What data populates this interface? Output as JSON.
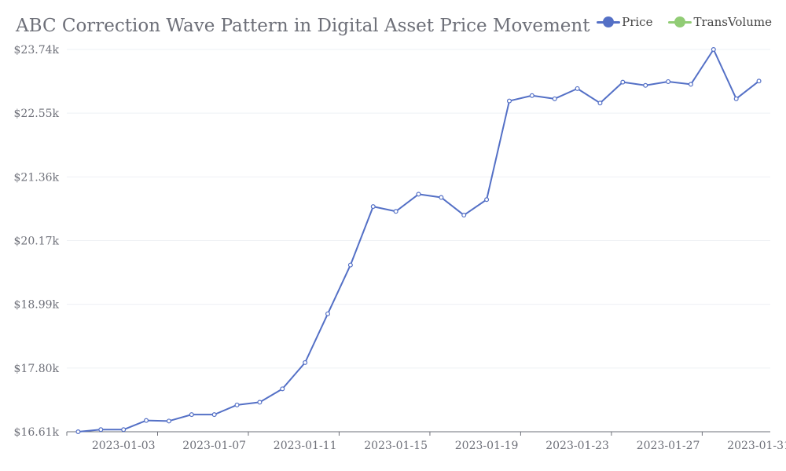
{
  "chart_data": {
    "type": "line",
    "title": "ABC Correction Wave Pattern in Digital Asset Price Movement",
    "legend": {
      "position": "top-right",
      "entries": [
        {
          "name": "Price",
          "color": "#5470c6"
        },
        {
          "name": "TransVolume",
          "color": "#91cc75"
        }
      ]
    },
    "x": [
      "2023-01-01",
      "2023-01-02",
      "2023-01-03",
      "2023-01-04",
      "2023-01-05",
      "2023-01-06",
      "2023-01-07",
      "2023-01-08",
      "2023-01-09",
      "2023-01-10",
      "2023-01-11",
      "2023-01-12",
      "2023-01-13",
      "2023-01-14",
      "2023-01-15",
      "2023-01-16",
      "2023-01-17",
      "2023-01-18",
      "2023-01-19",
      "2023-01-20",
      "2023-01-21",
      "2023-01-22",
      "2023-01-23",
      "2023-01-24",
      "2023-01-25",
      "2023-01-26",
      "2023-01-27",
      "2023-01-28",
      "2023-01-29",
      "2023-01-30",
      "2023-01-31"
    ],
    "x_tick_labels": [
      "2023-01-03",
      "2023-01-07",
      "2023-01-11",
      "2023-01-15",
      "2023-01-19",
      "2023-01-23",
      "2023-01-27",
      "2023-01-31"
    ],
    "series": [
      {
        "name": "Price",
        "color": "#5470c6",
        "values": [
          16610,
          16650,
          16650,
          16820,
          16810,
          16930,
          16930,
          17110,
          17160,
          17410,
          17900,
          18810,
          19720,
          20810,
          20720,
          21040,
          20980,
          20650,
          20940,
          22780,
          22880,
          22820,
          23010,
          22740,
          23130,
          23070,
          23140,
          23090,
          23740,
          22820,
          23150
        ]
      }
    ],
    "ylim": [
      16610,
      23740
    ],
    "y_tick_labels": [
      "$16.61k",
      "$17.80k",
      "$18.99k",
      "$20.17k",
      "$21.36k",
      "$22.55k",
      "$23.74k"
    ],
    "grid": true
  }
}
